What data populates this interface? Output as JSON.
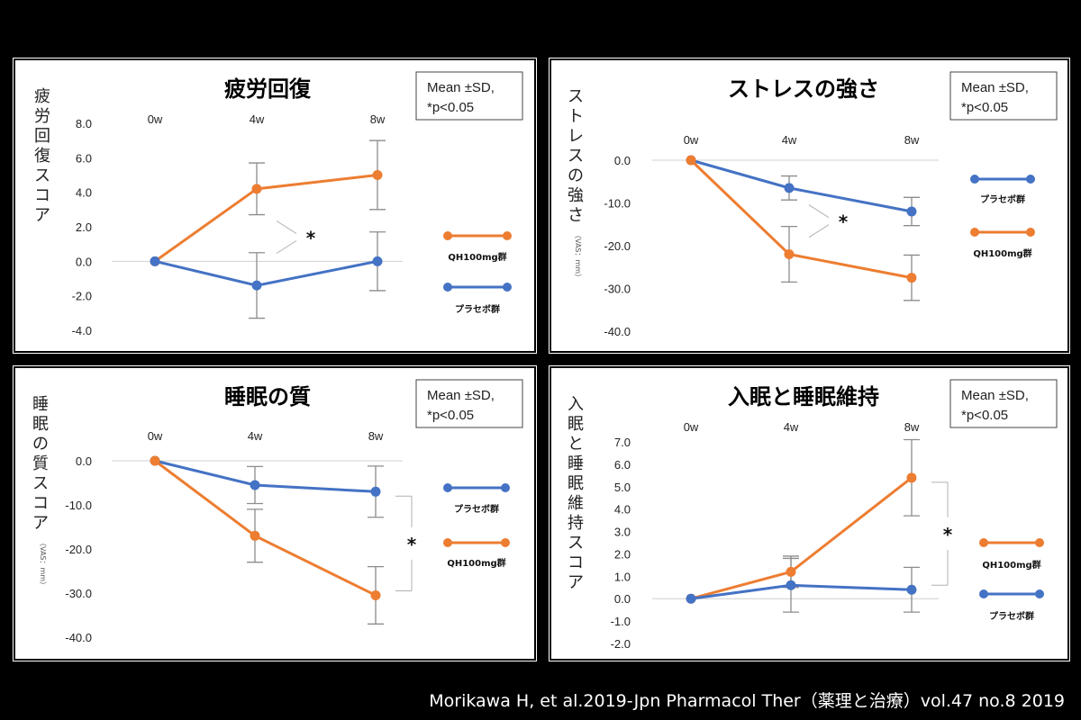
{
  "footer": "Morikawa H, et al.2019-Jpn Pharmacol Ther（薬理と治療）vol.47 no.8 2019",
  "colors": {
    "orange": "#ED7D31",
    "blue": "#4472C4",
    "error": "#8C8C8C"
  },
  "chart_data": [
    {
      "type": "line",
      "title": "疲労回復",
      "ylabel": "疲労回復スコア",
      "ylabel_sub": "",
      "note": [
        "Mean ±SD,",
        "*p<0.05"
      ],
      "categories": [
        "0w",
        "4w",
        "8w"
      ],
      "ylim": [
        -4.0,
        8.0
      ],
      "yticks": [
        8.0,
        6.0,
        4.0,
        2.0,
        0.0,
        -2.0,
        -4.0
      ],
      "ytick_labels": [
        "8.0",
        "6.0",
        "4.0",
        "2.0",
        "0.0",
        "-2.0",
        "-4.0"
      ],
      "series": [
        {
          "name": "QH100mg群",
          "color": "orange",
          "values": [
            0.0,
            4.2,
            5.0
          ],
          "sd": [
            0,
            1.5,
            2.0
          ]
        },
        {
          "name": "プラセボ群",
          "color": "blue",
          "values": [
            0.0,
            -1.4,
            0.0
          ],
          "sd": [
            0,
            1.9,
            1.7
          ]
        }
      ],
      "significance": {
        "label": "*",
        "at": 1
      }
    },
    {
      "type": "line",
      "title": "ストレスの強さ",
      "ylabel": "ストレスの強さ",
      "ylabel_sub": "（VAS：mm）",
      "note": [
        "Mean ±SD,",
        "*p<0.05"
      ],
      "categories": [
        "0w",
        "4w",
        "8w"
      ],
      "ylim": [
        -40.0,
        0.0
      ],
      "yticks": [
        0.0,
        -10.0,
        -20.0,
        -30.0,
        -40.0
      ],
      "ytick_labels": [
        "0.0",
        "-10.0",
        "-20.0",
        "-30.0",
        "-40.0"
      ],
      "series": [
        {
          "name": "プラセボ群",
          "color": "blue",
          "values": [
            0.0,
            -6.5,
            -12.0
          ],
          "sd": [
            0,
            2.8,
            3.3
          ]
        },
        {
          "name": "QH100mg群",
          "color": "orange",
          "values": [
            0.0,
            -22.0,
            -27.5
          ],
          "sd": [
            0,
            6.5,
            5.3
          ]
        }
      ],
      "significance": {
        "label": "*",
        "at": 1
      }
    },
    {
      "type": "line",
      "title": "睡眠の質",
      "ylabel": "睡眠の質スコア",
      "ylabel_sub": "（VAS：mm）",
      "note": [
        "Mean ±SD,",
        "*p<0.05"
      ],
      "categories": [
        "0w",
        "4w",
        "8w"
      ],
      "ylim": [
        -40.0,
        0.0
      ],
      "yticks": [
        0.0,
        -10.0,
        -20.0,
        -30.0,
        -40.0
      ],
      "ytick_labels": [
        "0.0",
        "-10.0",
        "-20.0",
        "-30.0",
        "-40.0"
      ],
      "series": [
        {
          "name": "プラセボ群",
          "color": "blue",
          "values": [
            0.0,
            -5.5,
            -7.0
          ],
          "sd": [
            0,
            4.2,
            5.8
          ]
        },
        {
          "name": "QH100mg群",
          "color": "orange",
          "values": [
            0.0,
            -17.0,
            -30.5
          ],
          "sd": [
            0,
            6.0,
            6.5
          ]
        }
      ],
      "significance": {
        "label": "*",
        "at": 2
      }
    },
    {
      "type": "line",
      "title": "入眠と睡眠維持",
      "ylabel": "入眠と睡眠維持スコア",
      "ylabel_sub": "",
      "note": [
        "Mean ±SD,",
        "*p<0.05"
      ],
      "categories": [
        "0w",
        "4w",
        "8w"
      ],
      "ylim": [
        -2.0,
        7.0
      ],
      "yticks": [
        7.0,
        6.0,
        5.0,
        4.0,
        3.0,
        2.0,
        1.0,
        0.0,
        -1.0,
        -2.0
      ],
      "ytick_labels": [
        "7.0",
        "6.0",
        "5.0",
        "4.0",
        "3.0",
        "2.0",
        "1.0",
        "0.0",
        "-1.0",
        "-2.0"
      ],
      "series": [
        {
          "name": "QH100mg群",
          "color": "orange",
          "values": [
            0.0,
            1.2,
            5.4
          ],
          "sd": [
            0,
            0.7,
            1.7
          ]
        },
        {
          "name": "プラセボ群",
          "color": "blue",
          "values": [
            0.0,
            0.6,
            0.4
          ],
          "sd": [
            0,
            1.2,
            1.0
          ]
        }
      ],
      "significance": {
        "label": "*",
        "at": 2
      }
    }
  ]
}
